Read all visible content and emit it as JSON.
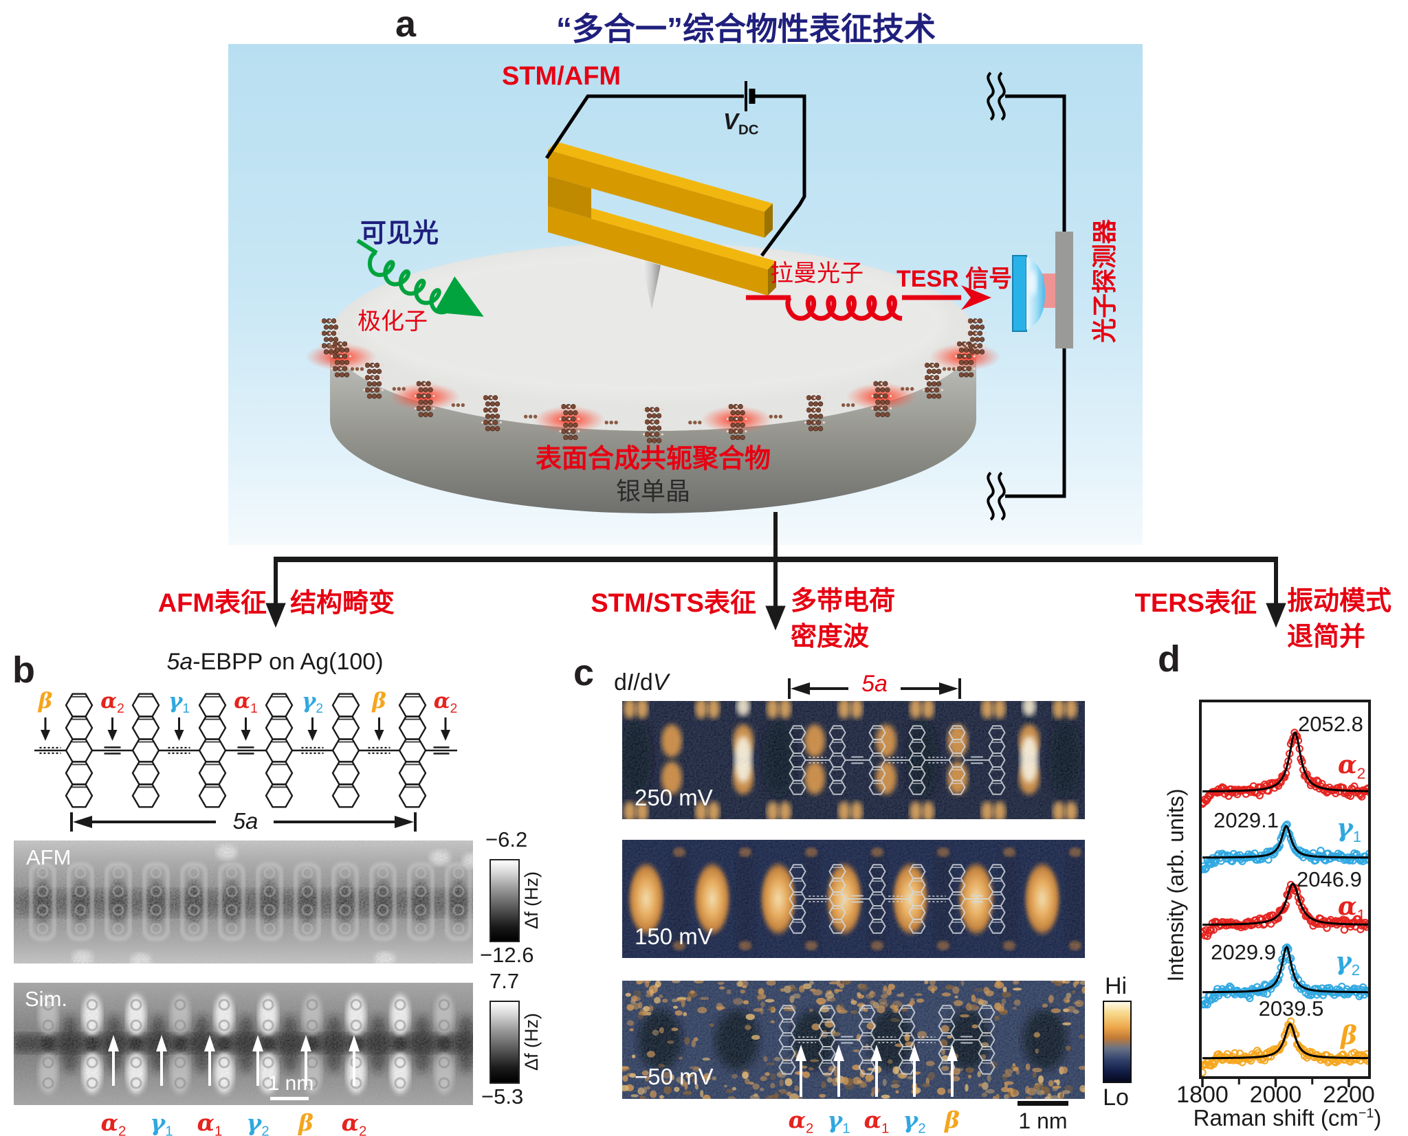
{
  "colors": {
    "red": "#e60012",
    "title_blue": "#1f1f7d",
    "alpha": "#e5231f",
    "gamma": "#2fa8e0",
    "beta": "#f5a51d",
    "green": "#00a33e",
    "gold": "#e8a414",
    "navy": "#101c3e"
  },
  "panel_a": {
    "letter": "a",
    "title": "“多合一”综合物性表征技术",
    "stm_afm": "STM/AFM",
    "vdc_main": "V",
    "vdc_sub": "DC",
    "visible_light": "可见光",
    "polaron": "极化子",
    "raman_photon": "拉曼光子",
    "tesr_signal": "TESR 信号",
    "photon_detector": "光子探测器",
    "polymer": "表面合成共轭聚合物",
    "substrate": "银单晶",
    "branches": [
      {
        "method": "AFM表征",
        "line1": "结构畸变",
        "line2": ""
      },
      {
        "method": "STM/STS表征",
        "line1": "多带电荷",
        "line2": "密度波"
      },
      {
        "method": "TERS表征",
        "line1": "振动模式",
        "line2": "退简并"
      }
    ]
  },
  "panel_b": {
    "letter": "b",
    "title_italic": "5a",
    "title_rest": "-EBPP on Ag(100)",
    "bond_labels": [
      {
        "g": "β",
        "s": ""
      },
      {
        "g": "α",
        "s": "2"
      },
      {
        "g": "γ",
        "s": "1"
      },
      {
        "g": "α",
        "s": "1"
      },
      {
        "g": "γ",
        "s": "2"
      },
      {
        "g": "β",
        "s": ""
      },
      {
        "g": "α",
        "s": "2"
      }
    ],
    "dimension": "5a",
    "afm": {
      "label": "AFM",
      "cbar_top": "−6.2",
      "cbar_bottom": "−12.6",
      "cbar_unit": "Δf (Hz)"
    },
    "sim": {
      "label": "Sim.",
      "cbar_top": "7.7",
      "cbar_bottom": "−5.3",
      "cbar_unit": "Δf (Hz)",
      "scalebar": "1 nm",
      "arrow_labels": [
        {
          "g": "α",
          "s": "2"
        },
        {
          "g": "γ",
          "s": "1"
        },
        {
          "g": "α",
          "s": "1"
        },
        {
          "g": "γ",
          "s": "2"
        },
        {
          "g": "β",
          "s": ""
        },
        {
          "g": "α",
          "s": "2"
        }
      ]
    }
  },
  "panel_c": {
    "letter": "c",
    "map_label": {
      "p1": "d",
      "i1": "I",
      "p2": "/d",
      "i2": "V"
    },
    "dimension": "5a",
    "bias_labels": [
      "250 mV",
      "150 mV",
      "−50 mV"
    ],
    "arrow_labels": [
      {
        "g": "α",
        "s": "2"
      },
      {
        "g": "γ",
        "s": "1"
      },
      {
        "g": "α",
        "s": "1"
      },
      {
        "g": "γ",
        "s": "2"
      },
      {
        "g": "β",
        "s": ""
      }
    ],
    "scalebar": "1 nm",
    "cbar_top": "Hi",
    "cbar_bottom": "Lo"
  },
  "panel_d": {
    "letter": "d"
  },
  "chart_data": {
    "type": "line",
    "xlabel_pre": "Raman shift (cm",
    "xlabel_sup": "−1",
    "xlabel_post": ")",
    "ylabel": "Intensity (arb. units)",
    "xlim": [
      1800,
      2256
    ],
    "xticks": [
      1800,
      2000,
      2200
    ],
    "xticks_minor": [
      1900,
      2100
    ],
    "series": [
      {
        "greek": "α",
        "sub": "2",
        "color": "#e5231f",
        "peak_cm": 2052.8,
        "peak_label": "2052.8",
        "amplitude": 86,
        "hwhm_cm": 19,
        "label_side": "right"
      },
      {
        "greek": "γ",
        "sub": "1",
        "color": "#2fa8e0",
        "peak_cm": 2029.1,
        "peak_label": "2029.1",
        "amplitude": 46,
        "hwhm_cm": 16,
        "label_side": "left"
      },
      {
        "greek": "α",
        "sub": "1",
        "color": "#e5231f",
        "peak_cm": 2046.9,
        "peak_label": "2046.9",
        "amplitude": 60,
        "hwhm_cm": 22,
        "label_side": "right"
      },
      {
        "greek": "γ",
        "sub": "2",
        "color": "#2fa8e0",
        "peak_cm": 2029.9,
        "peak_label": "2029.9",
        "amplitude": 66,
        "hwhm_cm": 16,
        "label_side": "left"
      },
      {
        "greek": "β",
        "sub": "",
        "color": "#f5a51d",
        "peak_cm": 2039.5,
        "peak_label": "2039.5",
        "amplitude": 50,
        "hwhm_cm": 18,
        "label_side": "center"
      }
    ]
  }
}
